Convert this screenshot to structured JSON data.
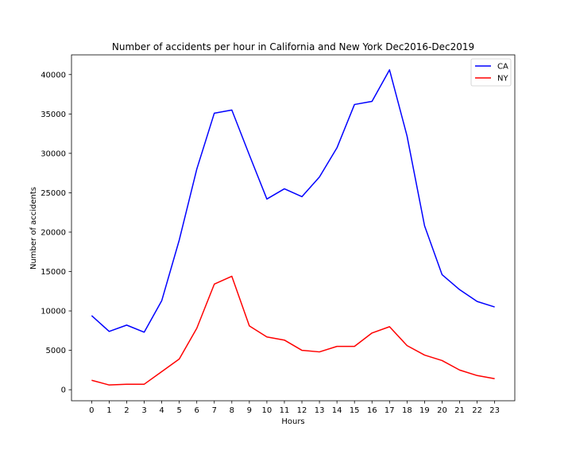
{
  "chart_data": {
    "type": "line",
    "title": "Number of accidents per hour in California and New York Dec2016-Dec2019",
    "xlabel": "Hours",
    "ylabel": "Number of accidents",
    "x": [
      0,
      1,
      2,
      3,
      4,
      5,
      6,
      7,
      8,
      9,
      10,
      11,
      12,
      13,
      14,
      15,
      16,
      17,
      18,
      19,
      20,
      21,
      22,
      23
    ],
    "x_tick_labels": [
      "0",
      "1",
      "2",
      "3",
      "4",
      "5",
      "6",
      "7",
      "8",
      "9",
      "10",
      "11",
      "12",
      "13",
      "14",
      "15",
      "16",
      "17",
      "18",
      "19",
      "20",
      "21",
      "22",
      "23"
    ],
    "y_ticks": [
      0,
      5000,
      10000,
      15000,
      20000,
      25000,
      30000,
      35000,
      40000
    ],
    "y_tick_labels": [
      "0",
      "5000",
      "10000",
      "15000",
      "20000",
      "25000",
      "30000",
      "35000",
      "40000"
    ],
    "xlim": [
      -1.15,
      24.15
    ],
    "ylim": [
      -1400,
      42500
    ],
    "grid": false,
    "legend_position": "top-right",
    "series": [
      {
        "name": "CA",
        "color": "#0000ff",
        "values": [
          9400,
          7400,
          8200,
          7300,
          11300,
          19000,
          28000,
          35100,
          35500,
          29800,
          24200,
          25500,
          24500,
          27000,
          30700,
          36200,
          36600,
          40600,
          32200,
          20800,
          14600,
          12700,
          11200,
          10500
        ]
      },
      {
        "name": "NY",
        "color": "#ff0000",
        "values": [
          1200,
          600,
          700,
          700,
          2300,
          3900,
          7800,
          13400,
          14400,
          8100,
          6700,
          6300,
          5000,
          4800,
          5500,
          5500,
          7200,
          8000,
          5600,
          4400,
          3700,
          2500,
          1800,
          1400
        ]
      }
    ]
  }
}
